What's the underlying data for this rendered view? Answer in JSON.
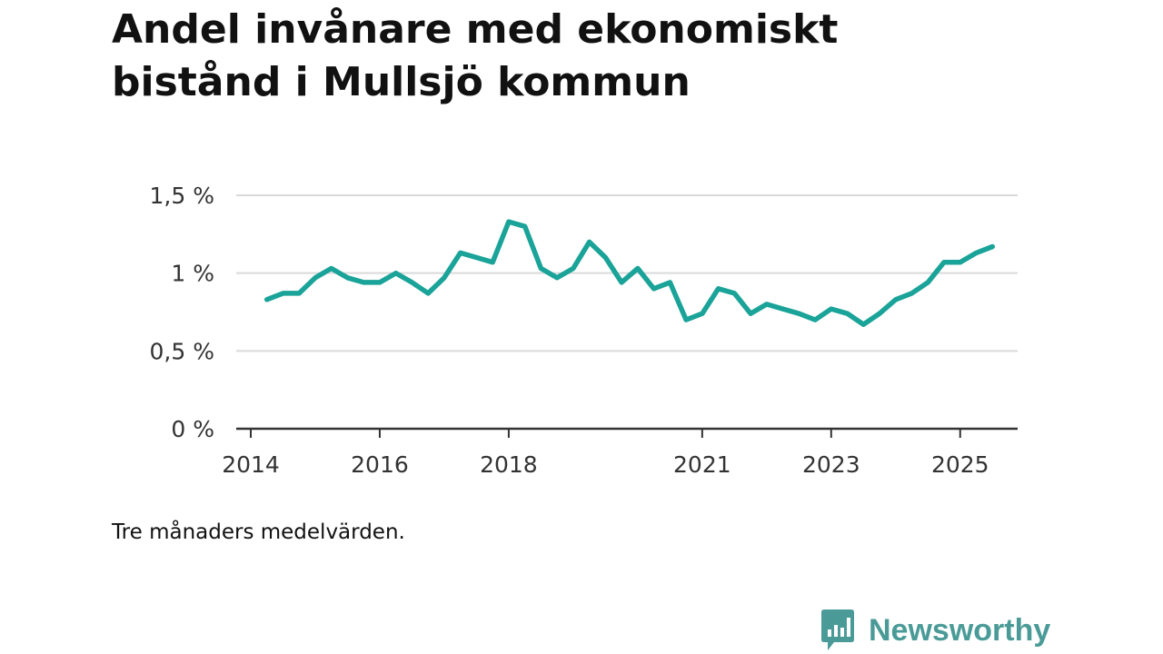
{
  "title_lines": [
    "Andel invånare med ekonomiskt",
    "bistånd i Mullsjö kommun"
  ],
  "caption": "Tre månaders medelvärden.",
  "brand": {
    "name": "Newsworthy",
    "icon": "bar-chart-speech-bubble-icon",
    "color": "#4a9b97"
  },
  "colors": {
    "line": "#1aa398",
    "grid": "#d9d9d9",
    "axis": "#333333"
  },
  "chart_data": {
    "type": "line",
    "title": "Andel invånare med ekonomiskt bistånd i Mullsjö kommun",
    "xlabel": "",
    "ylabel": "",
    "ylim": [
      0,
      1.5
    ],
    "xlim": [
      2014.0,
      2025.75
    ],
    "grid": true,
    "y_ticks": [
      {
        "value": 0,
        "label": "0 %"
      },
      {
        "value": 0.5,
        "label": "0,5 %"
      },
      {
        "value": 1,
        "label": "1 %"
      },
      {
        "value": 1.5,
        "label": "1,5 %"
      }
    ],
    "x_ticks": [
      {
        "value": 2014,
        "label": "2014"
      },
      {
        "value": 2016,
        "label": "2016"
      },
      {
        "value": 2018,
        "label": "2018"
      },
      {
        "value": 2021,
        "label": "2021"
      },
      {
        "value": 2023,
        "label": "2023"
      },
      {
        "value": 2025,
        "label": "2025"
      }
    ],
    "series": [
      {
        "x": [
          2014.25,
          2014.5,
          2014.75,
          2015.0,
          2015.25,
          2015.5,
          2015.75,
          2016.0,
          2016.25,
          2016.5,
          2016.75,
          2017.0,
          2017.25,
          2017.5,
          2017.75,
          2018.0,
          2018.25,
          2018.5,
          2018.75,
          2019.0,
          2019.25,
          2019.5,
          2019.75,
          2020.0,
          2020.25,
          2020.5,
          2020.75,
          2021.0,
          2021.25,
          2021.5,
          2021.75,
          2022.0,
          2022.25,
          2022.5,
          2022.75,
          2023.0,
          2023.25,
          2023.5,
          2023.75,
          2024.0,
          2024.25,
          2024.5,
          2024.75,
          2025.0,
          2025.25,
          2025.5
        ],
        "values": [
          0.83,
          0.87,
          0.87,
          0.97,
          1.03,
          0.97,
          0.94,
          0.94,
          1.0,
          0.94,
          0.87,
          0.97,
          1.13,
          1.1,
          1.07,
          1.33,
          1.3,
          1.03,
          0.97,
          1.03,
          1.2,
          1.1,
          0.94,
          1.03,
          0.9,
          0.94,
          0.7,
          0.74,
          0.9,
          0.87,
          0.74,
          0.8,
          0.77,
          0.74,
          0.7,
          0.77,
          0.74,
          0.67,
          0.74,
          0.83,
          0.87,
          0.94,
          1.07,
          1.07,
          1.13,
          1.17
        ]
      }
    ]
  }
}
